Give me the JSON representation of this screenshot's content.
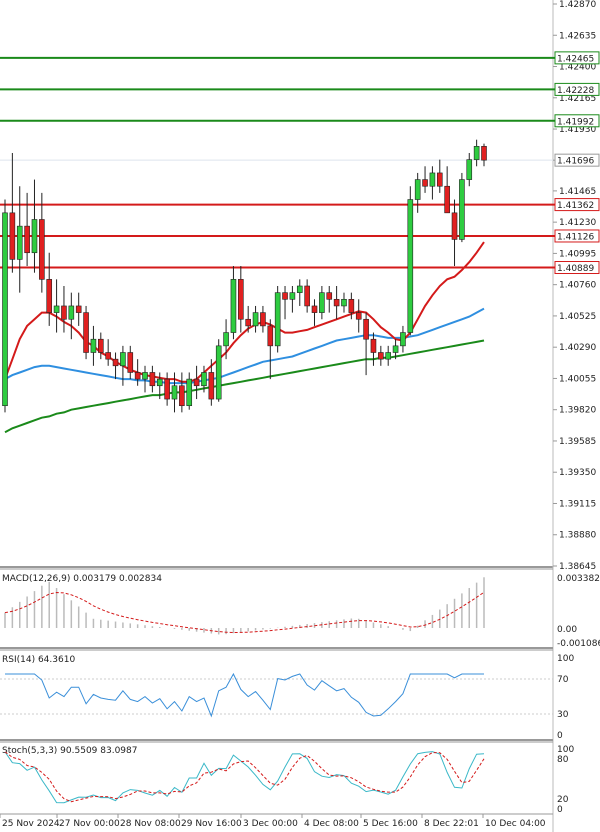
{
  "chart_data": {
    "type": "candlestick",
    "main_axis": {
      "ylim": [
        1.38645,
        1.4287
      ],
      "ticks": [
        "1.42870",
        "1.42635",
        "1.42400",
        "1.42165",
        "1.41930",
        "1.41696",
        "1.41465",
        "1.41230",
        "1.40995",
        "1.40760",
        "1.40525",
        "1.40290",
        "1.40055",
        "1.39820",
        "1.39585",
        "1.39350",
        "1.39115",
        "1.38880",
        "1.38645"
      ]
    },
    "current_price": "1.41696",
    "levels": [
      {
        "label": "1.42465",
        "value": 1.42465,
        "color": "#1a8a1a"
      },
      {
        "label": "1.42228",
        "value": 1.42228,
        "color": "#1a8a1a"
      },
      {
        "label": "1.41992",
        "value": 1.41992,
        "color": "#1a8a1a"
      },
      {
        "label": "1.41362",
        "value": 1.41362,
        "color": "#d41a1a"
      },
      {
        "label": "1.41126",
        "value": 1.41126,
        "color": "#d41a1a"
      },
      {
        "label": "1.40889",
        "value": 1.40889,
        "color": "#d41a1a"
      }
    ],
    "candles": [
      {
        "o": 1.3985,
        "h": 1.414,
        "l": 1.398,
        "c": 1.413
      },
      {
        "o": 1.413,
        "h": 1.4175,
        "l": 1.4085,
        "c": 1.4095
      },
      {
        "o": 1.4095,
        "h": 1.415,
        "l": 1.407,
        "c": 1.412
      },
      {
        "o": 1.412,
        "h": 1.4145,
        "l": 1.409,
        "c": 1.41
      },
      {
        "o": 1.41,
        "h": 1.4155,
        "l": 1.4085,
        "c": 1.4125
      },
      {
        "o": 1.4125,
        "h": 1.4145,
        "l": 1.407,
        "c": 1.408
      },
      {
        "o": 1.408,
        "h": 1.41,
        "l": 1.4045,
        "c": 1.4055
      },
      {
        "o": 1.4055,
        "h": 1.408,
        "l": 1.404,
        "c": 1.406
      },
      {
        "o": 1.406,
        "h": 1.4075,
        "l": 1.404,
        "c": 1.405
      },
      {
        "o": 1.405,
        "h": 1.407,
        "l": 1.4035,
        "c": 1.406
      },
      {
        "o": 1.406,
        "h": 1.407,
        "l": 1.4045,
        "c": 1.4055
      },
      {
        "o": 1.4055,
        "h": 1.406,
        "l": 1.402,
        "c": 1.4025
      },
      {
        "o": 1.4025,
        "h": 1.4045,
        "l": 1.4015,
        "c": 1.4035
      },
      {
        "o": 1.4035,
        "h": 1.404,
        "l": 1.402,
        "c": 1.4025
      },
      {
        "o": 1.4025,
        "h": 1.4035,
        "l": 1.4015,
        "c": 1.402
      },
      {
        "o": 1.402,
        "h": 1.4025,
        "l": 1.4005,
        "c": 1.4015
      },
      {
        "o": 1.4015,
        "h": 1.403,
        "l": 1.4,
        "c": 1.4025
      },
      {
        "o": 1.4025,
        "h": 1.403,
        "l": 1.4005,
        "c": 1.401
      },
      {
        "o": 1.401,
        "h": 1.402,
        "l": 1.4,
        "c": 1.4005
      },
      {
        "o": 1.4005,
        "h": 1.4015,
        "l": 1.3995,
        "c": 1.401
      },
      {
        "o": 1.401,
        "h": 1.4015,
        "l": 1.3995,
        "c": 1.4
      },
      {
        "o": 1.4,
        "h": 1.401,
        "l": 1.399,
        "c": 1.4005
      },
      {
        "o": 1.4005,
        "h": 1.401,
        "l": 1.3985,
        "c": 1.399
      },
      {
        "o": 1.399,
        "h": 1.401,
        "l": 1.398,
        "c": 1.4
      },
      {
        "o": 1.4,
        "h": 1.401,
        "l": 1.398,
        "c": 1.3985
      },
      {
        "o": 1.3985,
        "h": 1.401,
        "l": 1.3982,
        "c": 1.4005
      },
      {
        "o": 1.4005,
        "h": 1.4015,
        "l": 1.399,
        "c": 1.4
      },
      {
        "o": 1.4,
        "h": 1.4015,
        "l": 1.3995,
        "c": 1.401
      },
      {
        "o": 1.401,
        "h": 1.402,
        "l": 1.3985,
        "c": 1.399
      },
      {
        "o": 1.399,
        "h": 1.4035,
        "l": 1.3988,
        "c": 1.403
      },
      {
        "o": 1.403,
        "h": 1.405,
        "l": 1.402,
        "c": 1.404
      },
      {
        "o": 1.404,
        "h": 1.409,
        "l": 1.4035,
        "c": 1.408
      },
      {
        "o": 1.408,
        "h": 1.409,
        "l": 1.404,
        "c": 1.405
      },
      {
        "o": 1.405,
        "h": 1.406,
        "l": 1.404,
        "c": 1.4045
      },
      {
        "o": 1.4045,
        "h": 1.406,
        "l": 1.404,
        "c": 1.4055
      },
      {
        "o": 1.4055,
        "h": 1.406,
        "l": 1.404,
        "c": 1.4045
      },
      {
        "o": 1.4045,
        "h": 1.405,
        "l": 1.4005,
        "c": 1.403
      },
      {
        "o": 1.403,
        "h": 1.4075,
        "l": 1.4025,
        "c": 1.407
      },
      {
        "o": 1.407,
        "h": 1.4075,
        "l": 1.405,
        "c": 1.4065
      },
      {
        "o": 1.4065,
        "h": 1.4075,
        "l": 1.4055,
        "c": 1.407
      },
      {
        "o": 1.407,
        "h": 1.408,
        "l": 1.406,
        "c": 1.4075
      },
      {
        "o": 1.4075,
        "h": 1.408,
        "l": 1.4055,
        "c": 1.406
      },
      {
        "o": 1.406,
        "h": 1.4065,
        "l": 1.4045,
        "c": 1.4055
      },
      {
        "o": 1.4055,
        "h": 1.4075,
        "l": 1.405,
        "c": 1.407
      },
      {
        "o": 1.407,
        "h": 1.4075,
        "l": 1.4055,
        "c": 1.4065
      },
      {
        "o": 1.4065,
        "h": 1.4075,
        "l": 1.405,
        "c": 1.406
      },
      {
        "o": 1.406,
        "h": 1.407,
        "l": 1.4055,
        "c": 1.4065
      },
      {
        "o": 1.4065,
        "h": 1.407,
        "l": 1.405,
        "c": 1.4055
      },
      {
        "o": 1.4055,
        "h": 1.4065,
        "l": 1.404,
        "c": 1.405
      },
      {
        "o": 1.405,
        "h": 1.4055,
        "l": 1.4008,
        "c": 1.4035
      },
      {
        "o": 1.4035,
        "h": 1.404,
        "l": 1.4015,
        "c": 1.4025
      },
      {
        "o": 1.4025,
        "h": 1.403,
        "l": 1.4015,
        "c": 1.402
      },
      {
        "o": 1.402,
        "h": 1.403,
        "l": 1.4015,
        "c": 1.4025
      },
      {
        "o": 1.4025,
        "h": 1.4035,
        "l": 1.402,
        "c": 1.403
      },
      {
        "o": 1.403,
        "h": 1.4045,
        "l": 1.4025,
        "c": 1.404
      },
      {
        "o": 1.404,
        "h": 1.415,
        "l": 1.4038,
        "c": 1.414
      },
      {
        "o": 1.414,
        "h": 1.416,
        "l": 1.413,
        "c": 1.4155
      },
      {
        "o": 1.4155,
        "h": 1.4165,
        "l": 1.4145,
        "c": 1.415
      },
      {
        "o": 1.415,
        "h": 1.4165,
        "l": 1.414,
        "c": 1.416
      },
      {
        "o": 1.416,
        "h": 1.417,
        "l": 1.4145,
        "c": 1.415
      },
      {
        "o": 1.415,
        "h": 1.4165,
        "l": 1.413,
        "c": 1.413
      },
      {
        "o": 1.413,
        "h": 1.414,
        "l": 1.409,
        "c": 1.411
      },
      {
        "o": 1.411,
        "h": 1.416,
        "l": 1.4108,
        "c": 1.4155
      },
      {
        "o": 1.4155,
        "h": 1.4175,
        "l": 1.415,
        "c": 1.417
      },
      {
        "o": 1.417,
        "h": 1.4185,
        "l": 1.4165,
        "c": 1.418
      },
      {
        "o": 1.418,
        "h": 1.4182,
        "l": 1.4165,
        "c": 1.41696
      }
    ],
    "ma_red": [
      1.4005,
      1.402,
      1.4035,
      1.4045,
      1.405,
      1.4055,
      1.4055,
      1.4052,
      1.4048,
      1.4045,
      1.404,
      1.4033,
      1.403,
      1.4025,
      1.4022,
      1.4018,
      1.4015,
      1.4012,
      1.401,
      1.4008,
      1.4007,
      1.4006,
      1.4005,
      1.4005,
      1.4003,
      1.4003,
      1.4005,
      1.401,
      1.4015,
      1.402,
      1.4025,
      1.4032,
      1.4038,
      1.4043,
      1.4046,
      1.4048,
      1.4046,
      1.4043,
      1.404,
      1.404,
      1.4041,
      1.4042,
      1.4044,
      1.4046,
      1.4048,
      1.405,
      1.4052,
      1.4054,
      1.4056,
      1.4055,
      1.405,
      1.4044,
      1.404,
      1.4035,
      1.4034,
      1.404,
      1.405,
      1.406,
      1.4068,
      1.4075,
      1.408,
      1.4082,
      1.4087,
      1.4093,
      1.41,
      1.4108
    ],
    "ma_blue": [
      1.4005,
      1.4008,
      1.401,
      1.4012,
      1.4014,
      1.4015,
      1.4015,
      1.4014,
      1.4013,
      1.4012,
      1.4011,
      1.401,
      1.4009,
      1.4008,
      1.4007,
      1.4006,
      1.4005,
      1.4005,
      1.4004,
      1.4004,
      1.4003,
      1.4003,
      1.4002,
      1.4002,
      1.4002,
      1.4002,
      1.4003,
      1.4004,
      1.4005,
      1.4006,
      1.4008,
      1.401,
      1.4012,
      1.4014,
      1.4016,
      1.4018,
      1.4019,
      1.402,
      1.4021,
      1.4022,
      1.4024,
      1.4026,
      1.4028,
      1.403,
      1.4032,
      1.4034,
      1.4035,
      1.4036,
      1.4037,
      1.4038,
      1.4038,
      1.4037,
      1.4036,
      1.4036,
      1.4036,
      1.4037,
      1.4038,
      1.404,
      1.4042,
      1.4044,
      1.4046,
      1.4048,
      1.405,
      1.4052,
      1.4055,
      1.4058
    ],
    "ma_green": [
      1.3965,
      1.3968,
      1.397,
      1.3972,
      1.3974,
      1.3976,
      1.3977,
      1.3979,
      1.398,
      1.3982,
      1.3983,
      1.3984,
      1.3985,
      1.3986,
      1.3987,
      1.3988,
      1.3989,
      1.399,
      1.3991,
      1.3992,
      1.3993,
      1.3993,
      1.3994,
      1.3995,
      1.3995,
      1.3996,
      1.3997,
      1.3998,
      1.3999,
      1.4,
      1.4001,
      1.4002,
      1.4003,
      1.4004,
      1.4005,
      1.4006,
      1.4007,
      1.4008,
      1.4009,
      1.401,
      1.4011,
      1.4012,
      1.4013,
      1.4014,
      1.4015,
      1.4016,
      1.4017,
      1.4018,
      1.4019,
      1.402,
      1.402,
      1.4021,
      1.4021,
      1.4022,
      1.4023,
      1.4024,
      1.4025,
      1.4026,
      1.4027,
      1.4028,
      1.4029,
      1.403,
      1.4031,
      1.4032,
      1.4033,
      1.4034
    ],
    "macd": {
      "label": "MACD(12,26,9) 0.003179 0.002834",
      "ticks": [
        "0.003382",
        "0.00",
        "-0.001086"
      ],
      "ylim": [
        -0.001086,
        0.003382
      ]
    },
    "rsi": {
      "label": "RSI(14) 64.3610",
      "ticks": [
        "100",
        "70",
        "30",
        "0"
      ],
      "ylim": [
        0,
        100
      ]
    },
    "stoch": {
      "label": "Stoch(5,3,3) 90.5509 83.0987",
      "ticks": [
        "100",
        "80",
        "20",
        "0"
      ],
      "ylim": [
        0,
        100
      ]
    },
    "x_labels": [
      "25 Nov 2024",
      "27 Nov 00:00",
      "28 Nov 08:00",
      "29 Nov 16:00",
      "3 Dec 00:00",
      "4 Dec 08:00",
      "5 Dec 16:00",
      "8 Dec 22:01",
      "10 Dec 04:00"
    ]
  }
}
